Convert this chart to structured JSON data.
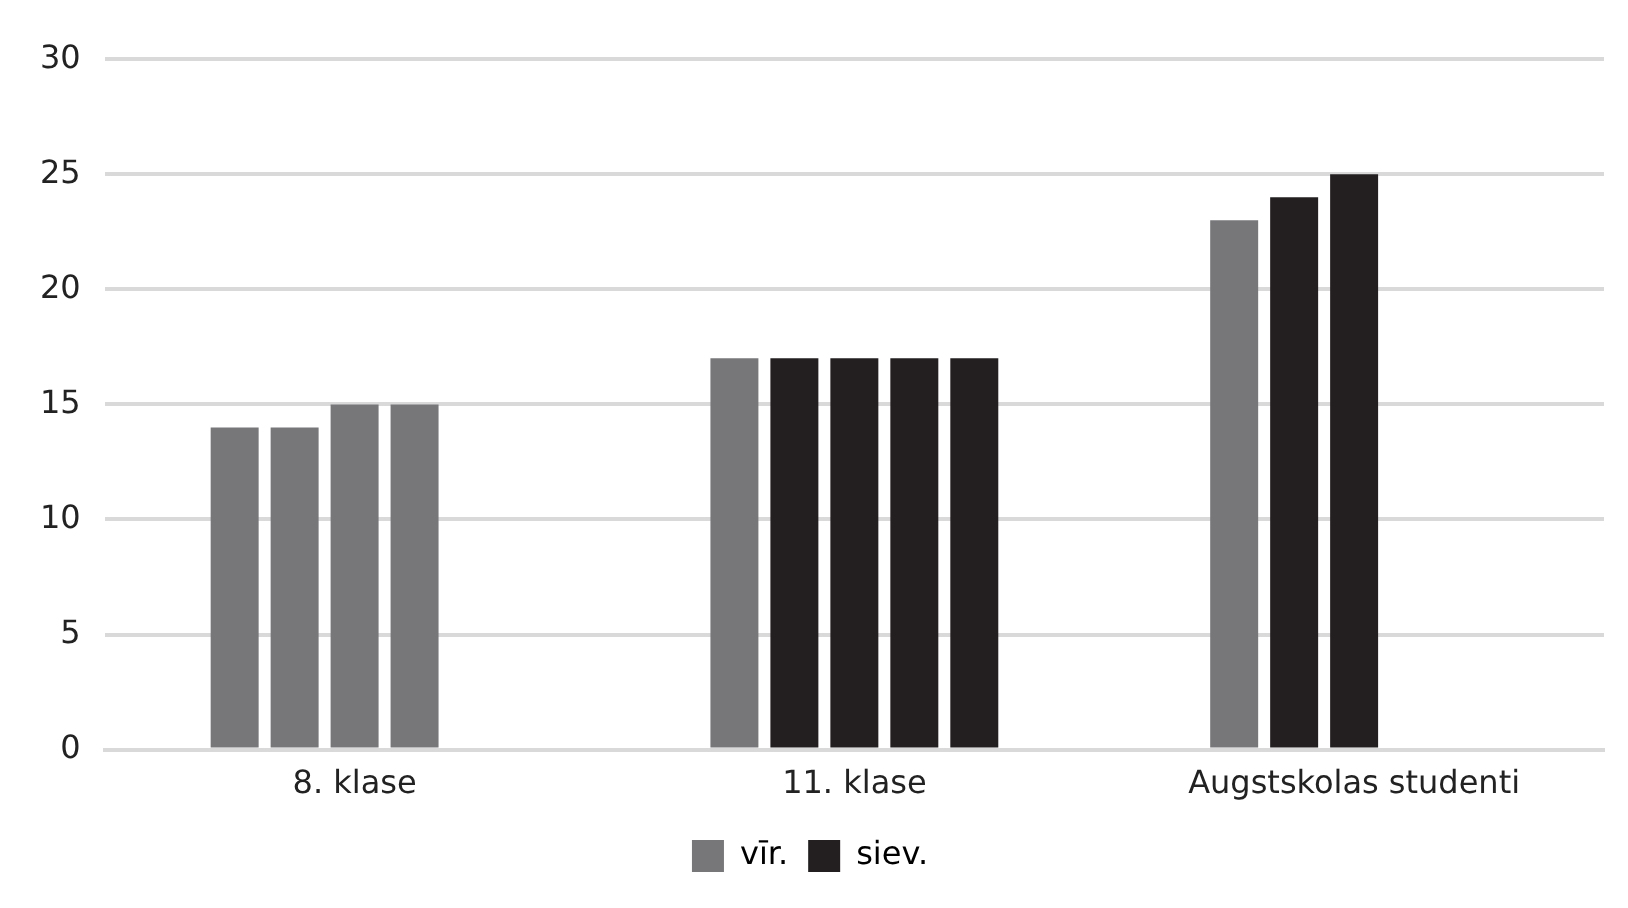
{
  "chart_data": {
    "type": "bar",
    "categories": [
      "8. klase",
      "11. klase",
      "Augstskolas studenti"
    ],
    "series": [
      {
        "name": "vīr.",
        "color": "#77777a",
        "colors": [
          "#77777a",
          "#77777a",
          "#77777a"
        ],
        "values": [
          14,
          17,
          23
        ]
      },
      {
        "name": "siev.",
        "color": "#231f20",
        "colors": [
          "#77777a",
          "#231f20",
          "#231f20"
        ],
        "values": [
          14,
          17,
          24
        ]
      },
      {
        "colors": [
          "#77777a",
          "#231f20",
          "#231f20"
        ],
        "values": [
          15,
          17,
          25
        ]
      },
      {
        "colors": [
          "#77777a",
          "#231f20",
          "#231f20"
        ],
        "values": [
          15,
          17,
          null
        ]
      },
      {
        "colors": [
          "#77777a",
          "#231f20",
          "#231f20"
        ],
        "values": [
          null,
          17,
          null
        ]
      }
    ],
    "ylim": [
      0,
      30
    ],
    "yticks": [
      0,
      5,
      10,
      15,
      20,
      25,
      30
    ],
    "grid": "y",
    "legend": "bottom"
  }
}
